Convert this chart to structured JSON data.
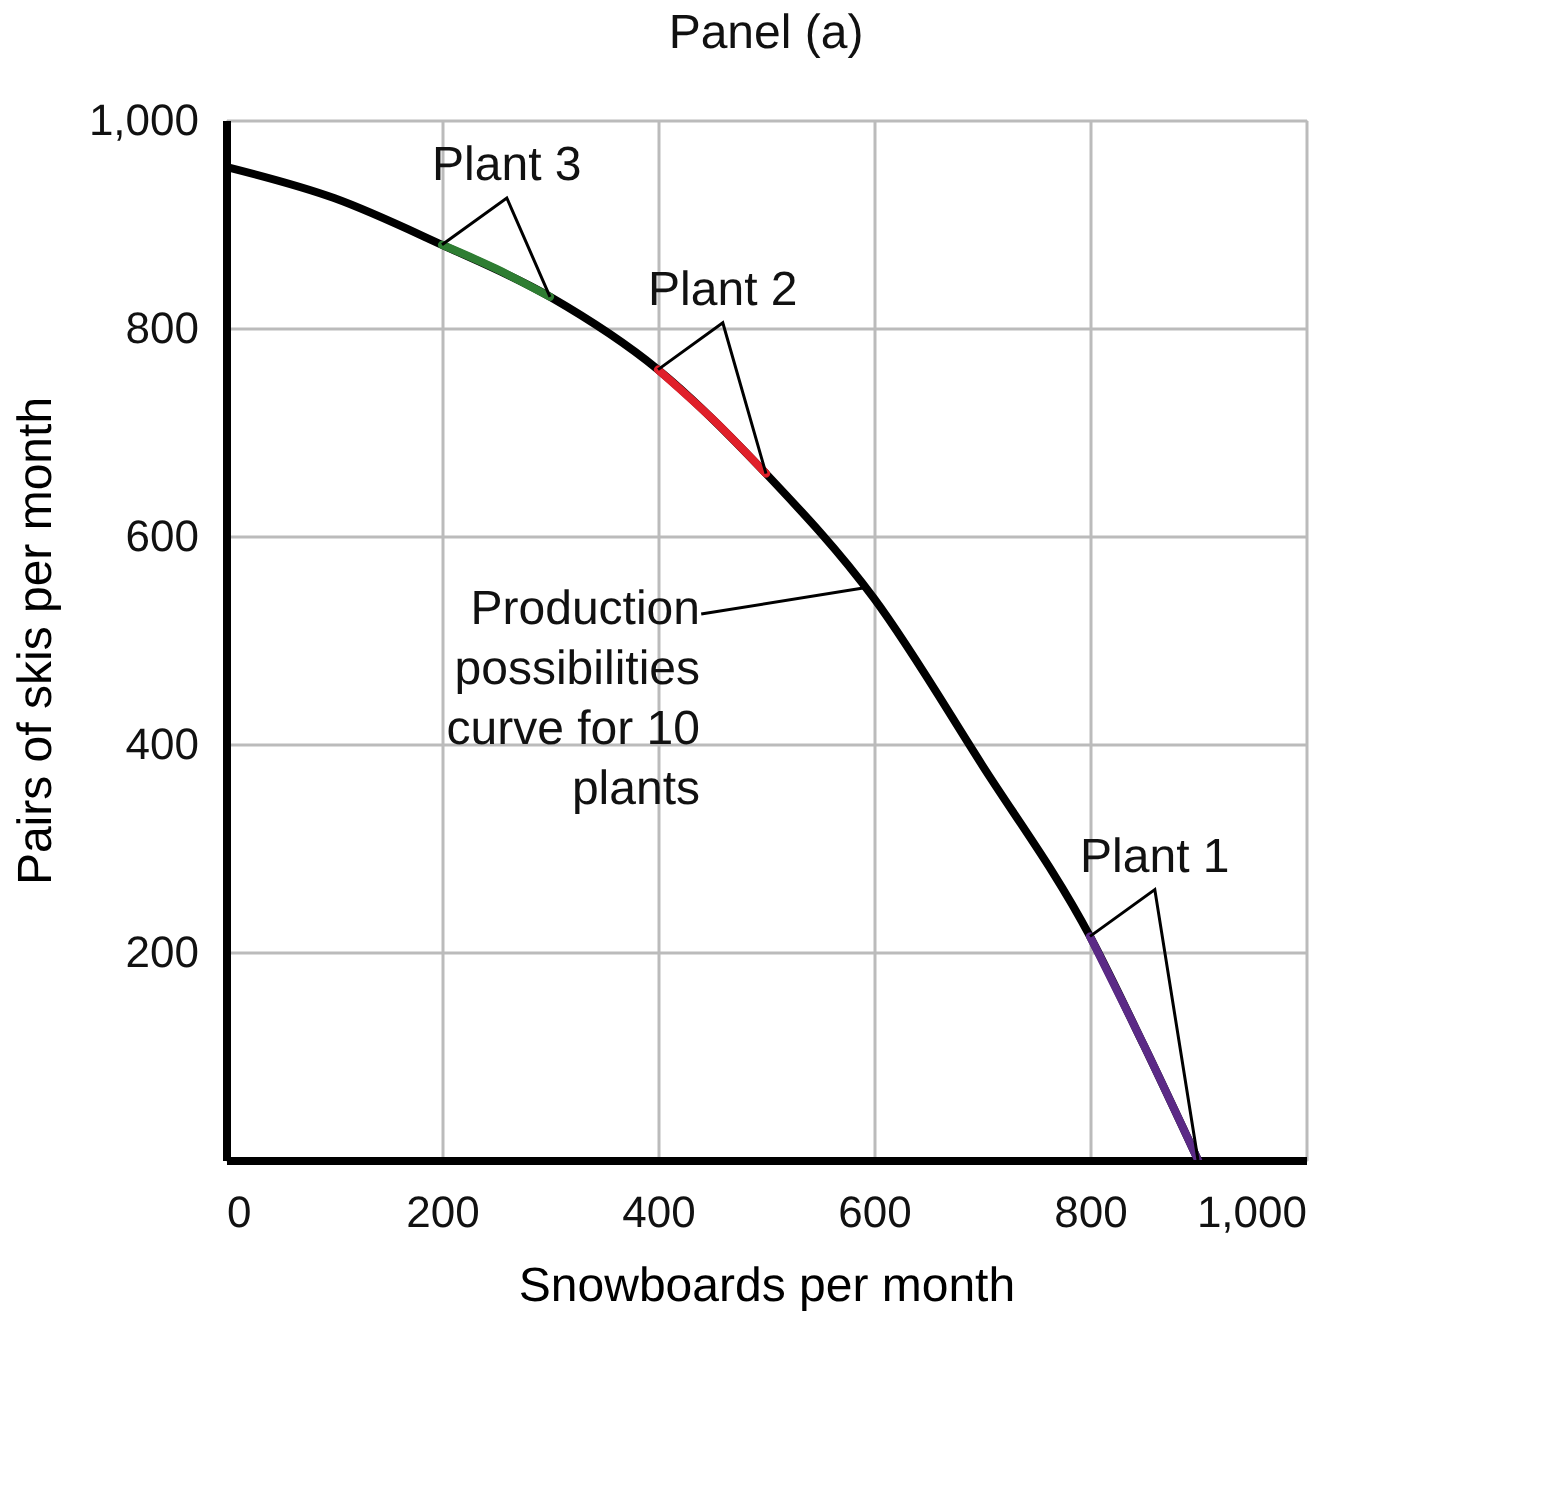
{
  "chart_data": {
    "type": "line",
    "title": "Panel (a)",
    "xlabel": "Snowboards per month",
    "ylabel": "Pairs of skis per month",
    "xlim": [
      0,
      1000
    ],
    "ylim": [
      0,
      1000
    ],
    "xticks": [
      0,
      200,
      400,
      600,
      800,
      {
        "value": 1000,
        "label": "1,000"
      }
    ],
    "yticks": [
      200,
      400,
      600,
      800,
      {
        "value": 1000,
        "label": "1,000"
      }
    ],
    "grid": true,
    "marker": "none",
    "line_style": "solid",
    "series": [
      {
        "color": "#000000",
        "x": [
          0,
          100,
          200,
          300,
          400,
          500,
          600,
          700,
          800,
          850,
          900
        ],
        "values": [
          955,
          925,
          880,
          830,
          760,
          660,
          540,
          380,
          215,
          110,
          0
        ]
      },
      {
        "name": "Plant 3",
        "color": "#2e7d32",
        "x": [
          200,
          250,
          300
        ],
        "values": [
          880,
          857,
          830
        ]
      },
      {
        "name": "Plant 2",
        "color": "#e0202a",
        "x": [
          400,
          450,
          500
        ],
        "values": [
          760,
          713,
          660
        ]
      },
      {
        "name": "Plant 1",
        "color": "#5b2a86",
        "x": [
          800,
          850,
          900
        ],
        "values": [
          215,
          110,
          0
        ]
      }
    ],
    "annotations": [
      {
        "text": "Production possibilities curve for 10 plants",
        "x": 590,
        "y": 550
      }
    ]
  }
}
